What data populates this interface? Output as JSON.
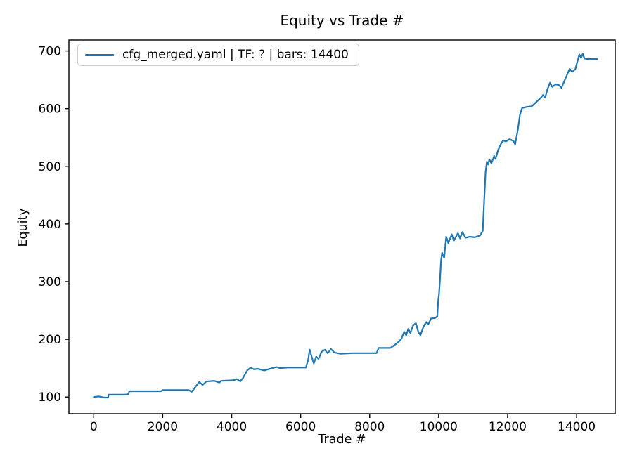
{
  "chart": {
    "title": "Equity vs Trade #",
    "xlabel": "Trade #",
    "ylabel": "Equity",
    "legend": "cfg_merged.yaml | TF: ? | bars: 14400"
  },
  "chart_data": {
    "type": "line",
    "title": "Equity vs Trade #",
    "xlabel": "Trade #",
    "ylabel": "Equity",
    "legend_entries": [
      "cfg_merged.yaml | TF: ? | bars: 14400"
    ],
    "legend_position": "upper left",
    "grid": false,
    "line_color": "#1f77b4",
    "frame_color": "#000000",
    "xlim": [
      -720,
      15120
    ],
    "ylim": [
      71,
      719
    ],
    "x_ticks": [
      0,
      2000,
      4000,
      6000,
      8000,
      10000,
      12000,
      14000
    ],
    "y_ticks": [
      100,
      200,
      300,
      400,
      500,
      600,
      700
    ],
    "series": [
      {
        "name": "cfg_merged.yaml | TF: ? | bars: 14400",
        "points": [
          [
            0,
            100
          ],
          [
            150,
            101
          ],
          [
            300,
            99
          ],
          [
            420,
            99
          ],
          [
            430,
            104
          ],
          [
            900,
            104
          ],
          [
            1010,
            105
          ],
          [
            1030,
            110
          ],
          [
            1600,
            110
          ],
          [
            1950,
            110
          ],
          [
            2000,
            112
          ],
          [
            2750,
            112
          ],
          [
            2840,
            109
          ],
          [
            2980,
            120
          ],
          [
            3060,
            126
          ],
          [
            3160,
            121
          ],
          [
            3270,
            127
          ],
          [
            3500,
            128
          ],
          [
            3640,
            125
          ],
          [
            3700,
            128
          ],
          [
            4050,
            129
          ],
          [
            4150,
            131
          ],
          [
            4250,
            127
          ],
          [
            4330,
            133
          ],
          [
            4390,
            140
          ],
          [
            4450,
            146
          ],
          [
            4550,
            151
          ],
          [
            4650,
            148
          ],
          [
            4750,
            149
          ],
          [
            4950,
            146
          ],
          [
            5050,
            148
          ],
          [
            5300,
            152
          ],
          [
            5400,
            150
          ],
          [
            5600,
            151
          ],
          [
            6150,
            151
          ],
          [
            6220,
            165
          ],
          [
            6260,
            182
          ],
          [
            6320,
            170
          ],
          [
            6380,
            158
          ],
          [
            6450,
            170
          ],
          [
            6520,
            166
          ],
          [
            6600,
            178
          ],
          [
            6700,
            182
          ],
          [
            6780,
            176
          ],
          [
            6880,
            183
          ],
          [
            6980,
            177
          ],
          [
            7150,
            175
          ],
          [
            7500,
            176
          ],
          [
            8200,
            176
          ],
          [
            8260,
            185
          ],
          [
            8600,
            185
          ],
          [
            8720,
            190
          ],
          [
            8850,
            196
          ],
          [
            8920,
            201
          ],
          [
            9000,
            213
          ],
          [
            9060,
            207
          ],
          [
            9120,
            218
          ],
          [
            9180,
            211
          ],
          [
            9260,
            224
          ],
          [
            9340,
            228
          ],
          [
            9410,
            213
          ],
          [
            9470,
            207
          ],
          [
            9560,
            222
          ],
          [
            9640,
            230
          ],
          [
            9700,
            226
          ],
          [
            9780,
            236
          ],
          [
            9900,
            237
          ],
          [
            9960,
            240
          ],
          [
            9990,
            270
          ],
          [
            10010,
            277
          ],
          [
            10040,
            305
          ],
          [
            10070,
            337
          ],
          [
            10100,
            350
          ],
          [
            10160,
            341
          ],
          [
            10220,
            378
          ],
          [
            10280,
            367
          ],
          [
            10380,
            382
          ],
          [
            10440,
            371
          ],
          [
            10560,
            384
          ],
          [
            10620,
            375
          ],
          [
            10690,
            386
          ],
          [
            10780,
            376
          ],
          [
            10900,
            378
          ],
          [
            11050,
            377
          ],
          [
            11200,
            380
          ],
          [
            11280,
            388
          ],
          [
            11320,
            440
          ],
          [
            11360,
            490
          ],
          [
            11400,
            508
          ],
          [
            11430,
            503
          ],
          [
            11470,
            512
          ],
          [
            11530,
            505
          ],
          [
            11610,
            518
          ],
          [
            11650,
            513
          ],
          [
            11730,
            529
          ],
          [
            11810,
            539
          ],
          [
            11870,
            545
          ],
          [
            11950,
            543
          ],
          [
            12050,
            547
          ],
          [
            12170,
            544
          ],
          [
            12220,
            538
          ],
          [
            12300,
            565
          ],
          [
            12360,
            590
          ],
          [
            12420,
            601
          ],
          [
            12550,
            603
          ],
          [
            12700,
            604
          ],
          [
            12840,
            612
          ],
          [
            12950,
            618
          ],
          [
            13030,
            624
          ],
          [
            13090,
            619
          ],
          [
            13150,
            633
          ],
          [
            13230,
            645
          ],
          [
            13290,
            638
          ],
          [
            13400,
            642
          ],
          [
            13480,
            641
          ],
          [
            13560,
            636
          ],
          [
            13640,
            647
          ],
          [
            13740,
            661
          ],
          [
            13800,
            669
          ],
          [
            13870,
            664
          ],
          [
            13960,
            668
          ],
          [
            14030,
            683
          ],
          [
            14080,
            694
          ],
          [
            14130,
            688
          ],
          [
            14180,
            695
          ],
          [
            14230,
            687
          ],
          [
            14300,
            686
          ],
          [
            14600,
            686
          ]
        ]
      }
    ]
  }
}
